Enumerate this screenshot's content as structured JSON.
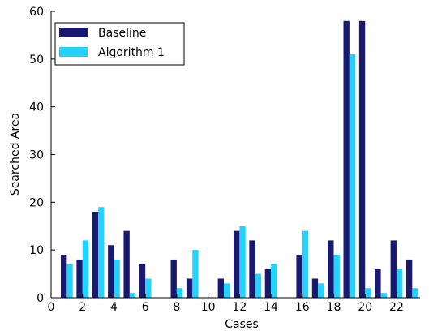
{
  "chart_data": {
    "type": "bar",
    "title": "",
    "xlabel": "Cases",
    "ylabel": "Searched Area",
    "xlim": [
      0,
      23.5
    ],
    "ylim": [
      0,
      60
    ],
    "xticks": [
      0,
      2,
      4,
      6,
      8,
      10,
      12,
      14,
      16,
      18,
      20,
      22
    ],
    "yticks": [
      0,
      10,
      20,
      30,
      40,
      50,
      60
    ],
    "grid": false,
    "legend_position": "top-left",
    "categories": [
      1,
      2,
      3,
      4,
      5,
      6,
      7,
      8,
      9,
      10,
      11,
      12,
      13,
      14,
      15,
      16,
      17,
      18,
      19,
      20,
      21,
      22,
      23
    ],
    "series": [
      {
        "name": "Baseline",
        "color": "#191970",
        "values": [
          9,
          8,
          18,
          11,
          14,
          7,
          0,
          8,
          4,
          0,
          4,
          14,
          12,
          6,
          0,
          9,
          4,
          12,
          58,
          58,
          6,
          12,
          8
        ]
      },
      {
        "name": "Algorithm 1",
        "color": "#22d3ff",
        "values": [
          7,
          12,
          19,
          8,
          1,
          4,
          0,
          2,
          10,
          0,
          3,
          15,
          5,
          7,
          0,
          14,
          3,
          9,
          51,
          2,
          1,
          6,
          2
        ]
      }
    ]
  }
}
